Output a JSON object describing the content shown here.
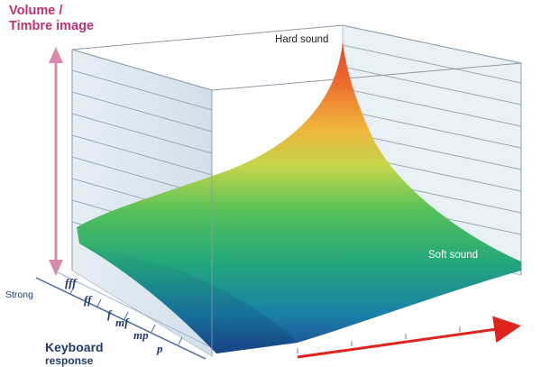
{
  "axes": {
    "vertical_label_line1": "Volume /",
    "vertical_label_line2": "Timbre image",
    "keyboard_label_line1": "Keyboard",
    "keyboard_label_line2": "response",
    "strong_label": "Strong"
  },
  "surface_labels": {
    "hard": "Hard sound",
    "soft": "Soft sound"
  },
  "dynamics": [
    "fff",
    "ff",
    "f",
    "mf",
    "mp",
    "p"
  ],
  "colors": {
    "vertical_arrow": "#d98aaa",
    "red_arrow": "#e0231c",
    "title_magenta": "#c0306f",
    "navy": "#1f3b6e"
  }
}
